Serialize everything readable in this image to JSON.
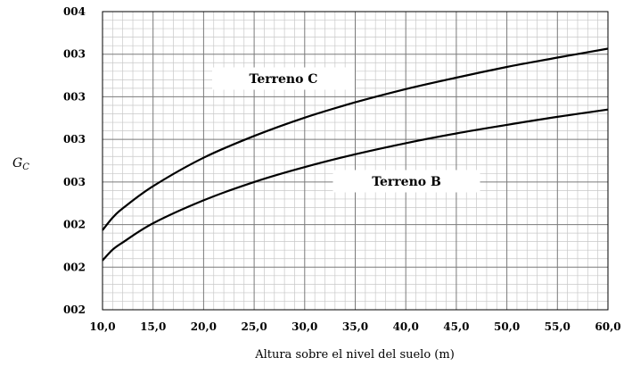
{
  "chart_data": {
    "type": "line",
    "title": "",
    "xlabel": "Altura sobre el nivel del suelo  (m)",
    "ylabel": "G",
    "ylabel_sub": "C",
    "xlim": [
      10,
      60
    ],
    "ylim": [
      0,
      7
    ],
    "grid": true,
    "x_ticks": [
      "10,0",
      "15,0",
      "20,0",
      "25,0",
      "30,0",
      "35,0",
      "40,0",
      "45,0",
      "50,0",
      "55,0",
      "60,0"
    ],
    "y_ticks": [
      "002",
      "002",
      "002",
      "003",
      "003",
      "003",
      "003",
      "004"
    ],
    "series": [
      {
        "name": "Terreno C",
        "x": [
          10,
          11,
          12,
          15,
          20,
          25,
          30,
          35,
          40,
          45,
          50,
          55,
          60
        ],
        "y": [
          1.87,
          2.16,
          2.38,
          2.9,
          3.57,
          4.08,
          4.51,
          4.87,
          5.18,
          5.45,
          5.7,
          5.92,
          6.13
        ]
      },
      {
        "name": "Terreno B",
        "x": [
          10,
          11,
          12,
          15,
          20,
          25,
          30,
          35,
          40,
          45,
          50,
          55,
          60
        ],
        "y": [
          1.16,
          1.41,
          1.58,
          2.03,
          2.57,
          3.0,
          3.35,
          3.65,
          3.91,
          4.14,
          4.34,
          4.53,
          4.7
        ]
      }
    ]
  }
}
